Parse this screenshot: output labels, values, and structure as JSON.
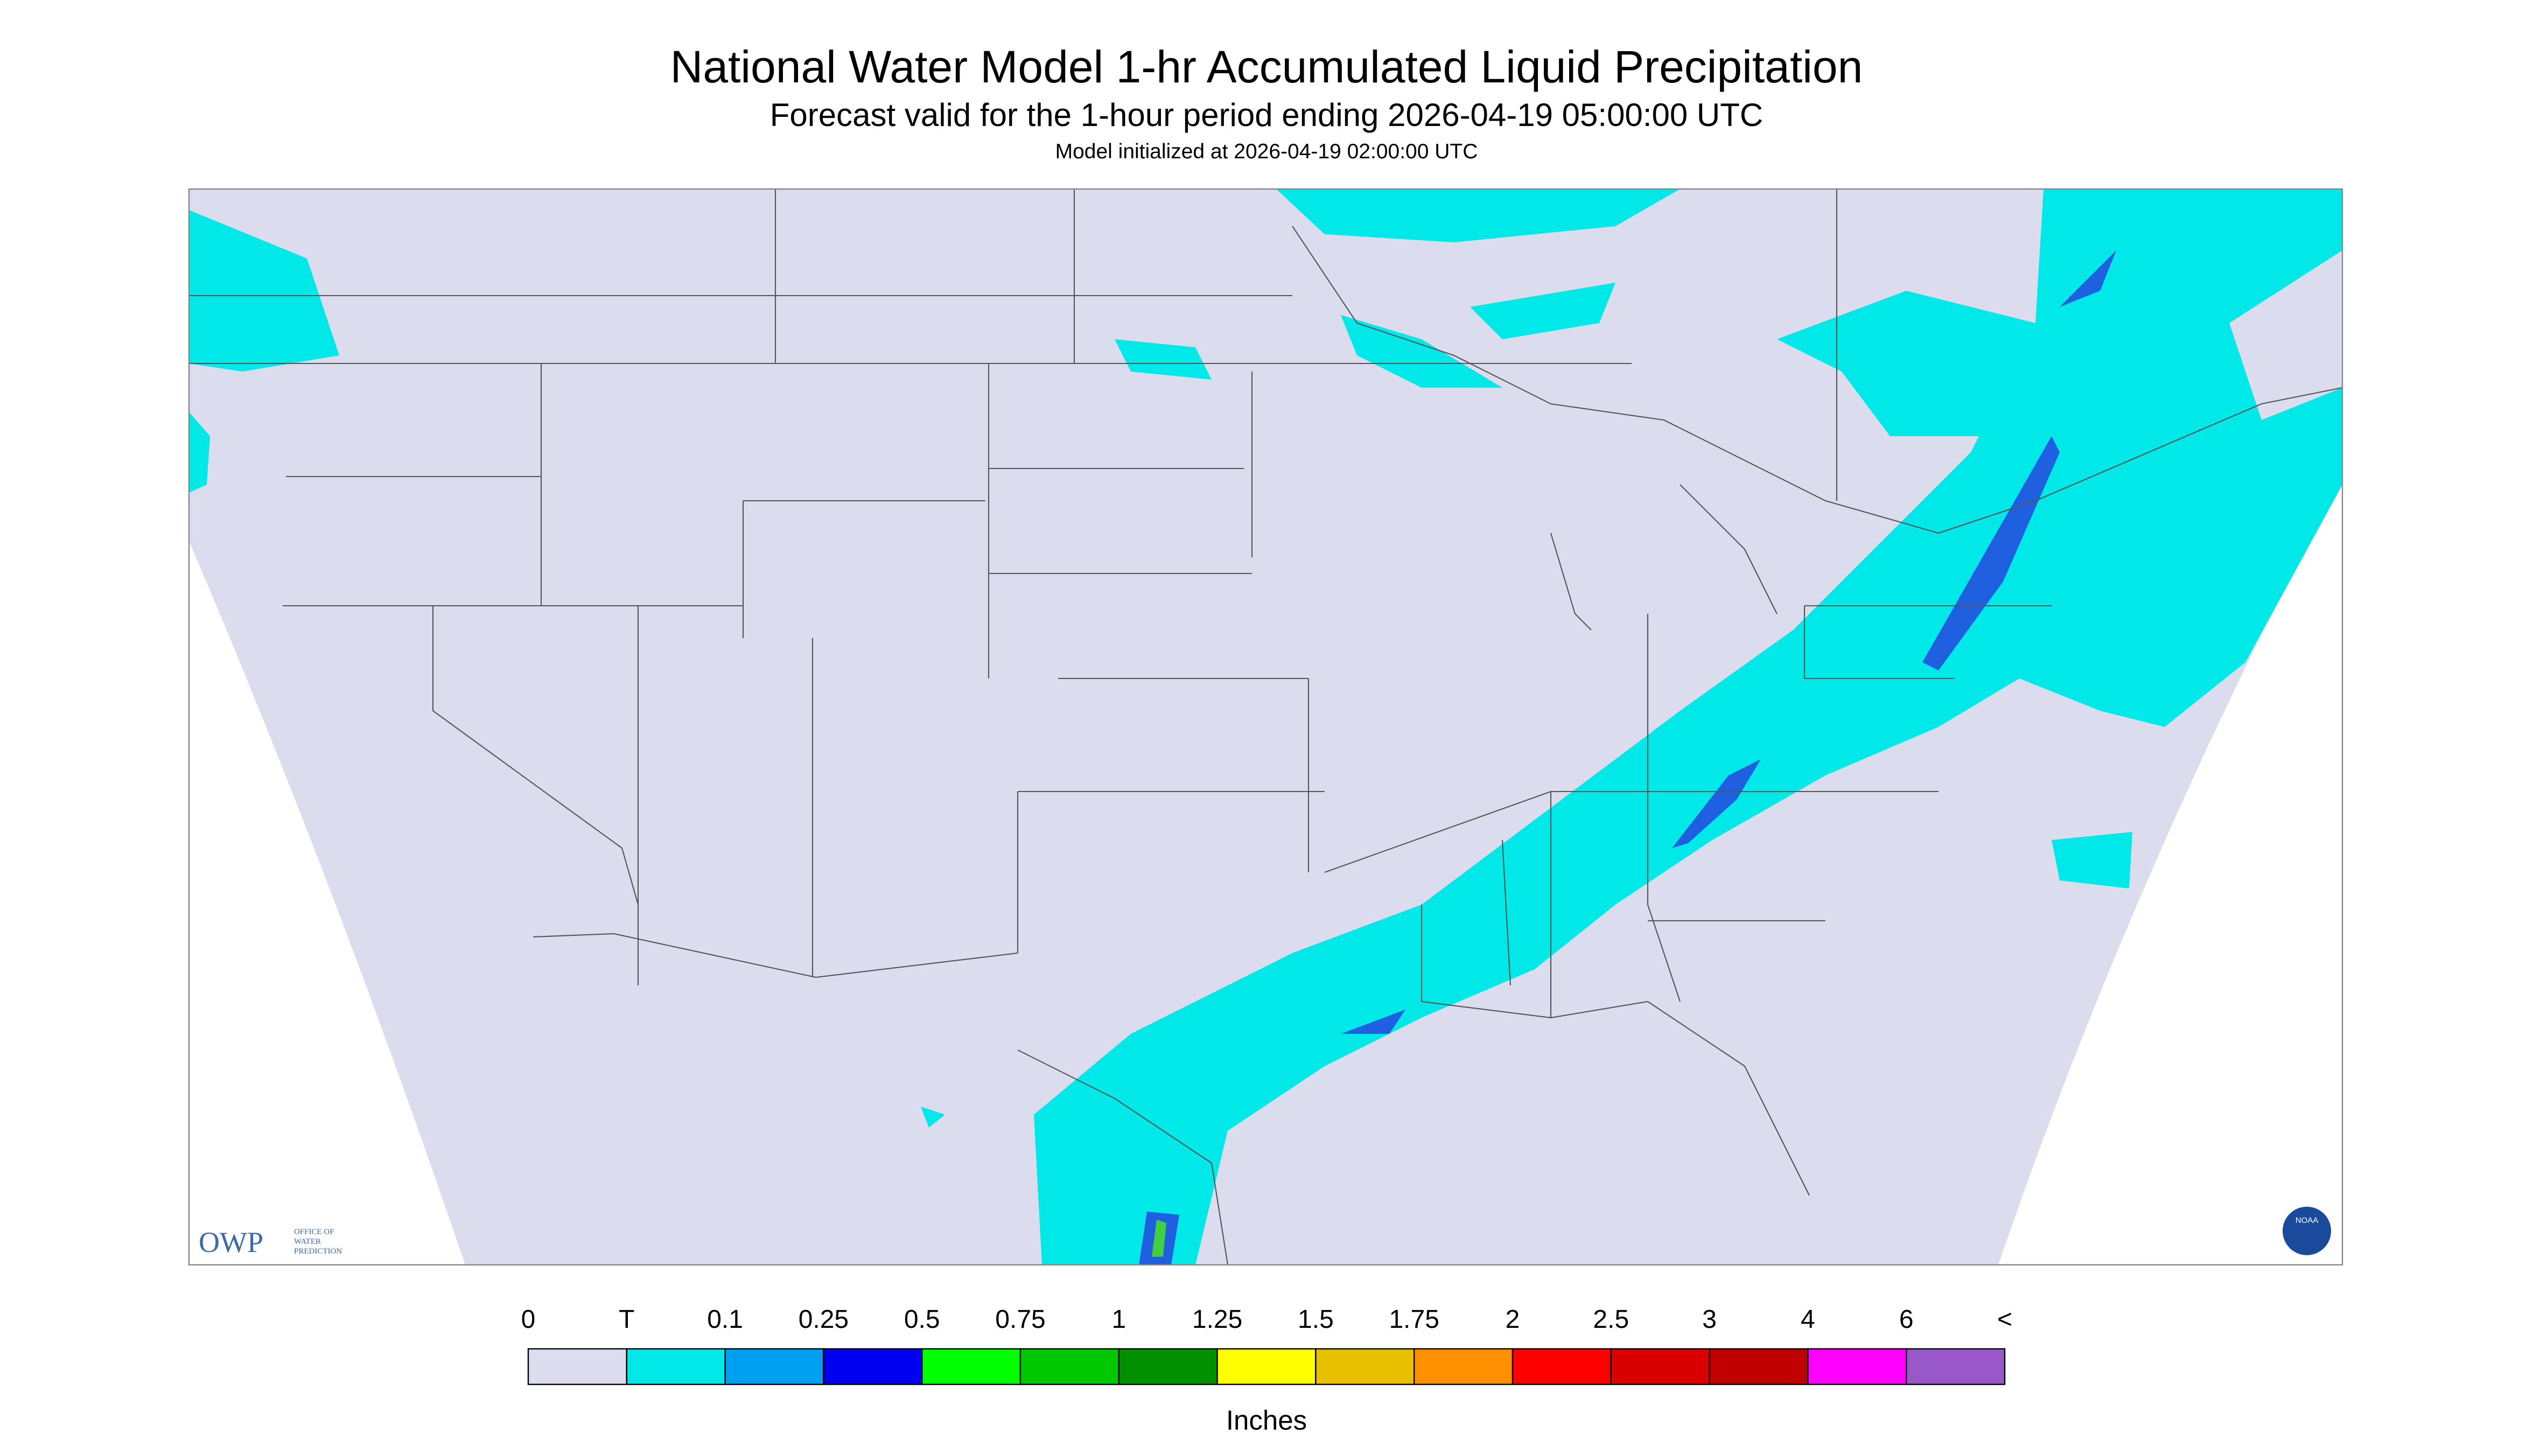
{
  "header": {
    "title": "National Water Model 1-hr Accumulated Liquid Precipitation",
    "subtitle": "Forecast valid for the 1-hour period ending 2026-04-19 05:00:00 UTC",
    "initialized": "Model initialized at 2026-04-19 02:00:00 UTC"
  },
  "legend": {
    "labels": [
      "0",
      "T",
      "0.1",
      "0.25",
      "0.5",
      "0.75",
      "1",
      "1.25",
      "1.5",
      "1.75",
      "2",
      "2.5",
      "3",
      "4",
      "6",
      "<"
    ],
    "colors": [
      "#dcdcef",
      "#00e8e8",
      "#00a0f0",
      "#0000f0",
      "#00ff00",
      "#00c800",
      "#009000",
      "#ffff00",
      "#e8c000",
      "#ff9000",
      "#ff0000",
      "#d80000",
      "#c00000",
      "#ff00ff",
      "#9858c8"
    ],
    "units": "Inches"
  },
  "logos": {
    "owp": "OWP",
    "owp_name": [
      "OFFICE OF",
      "WATER",
      "PREDICTION"
    ],
    "noaa": "NOAA"
  }
}
